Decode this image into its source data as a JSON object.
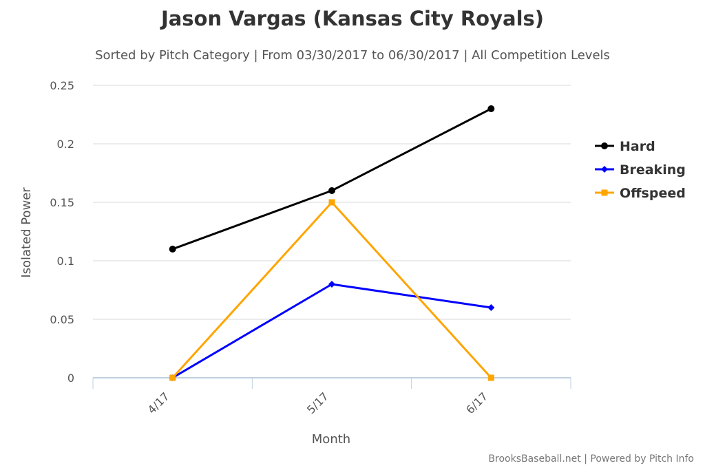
{
  "chart_data": {
    "type": "line",
    "title": "Jason Vargas (Kansas City Royals)",
    "subtitle": "Sorted by Pitch Category | From 03/30/2017 to 06/30/2017 | All Competition Levels",
    "xlabel": "Month",
    "ylabel": "Isolated Power",
    "categories": [
      "4/17",
      "5/17",
      "6/17"
    ],
    "ylim": [
      0,
      0.25
    ],
    "yticks": [
      "0",
      "0.05",
      "0.1",
      "0.15",
      "0.2",
      "0.25"
    ],
    "grid": true,
    "legend_position": "right",
    "series": [
      {
        "name": "Hard",
        "color": "#000000",
        "marker": "circle",
        "values": [
          0.11,
          0.16,
          0.23
        ]
      },
      {
        "name": "Breaking",
        "color": "#0000ff",
        "marker": "diamond",
        "values": [
          0,
          0.08,
          0.06
        ]
      },
      {
        "name": "Offspeed",
        "color": "#ffa500",
        "marker": "square",
        "values": [
          0,
          0.15,
          0
        ]
      }
    ]
  },
  "credit": "BrooksBaseball.net | Powered by Pitch Info"
}
